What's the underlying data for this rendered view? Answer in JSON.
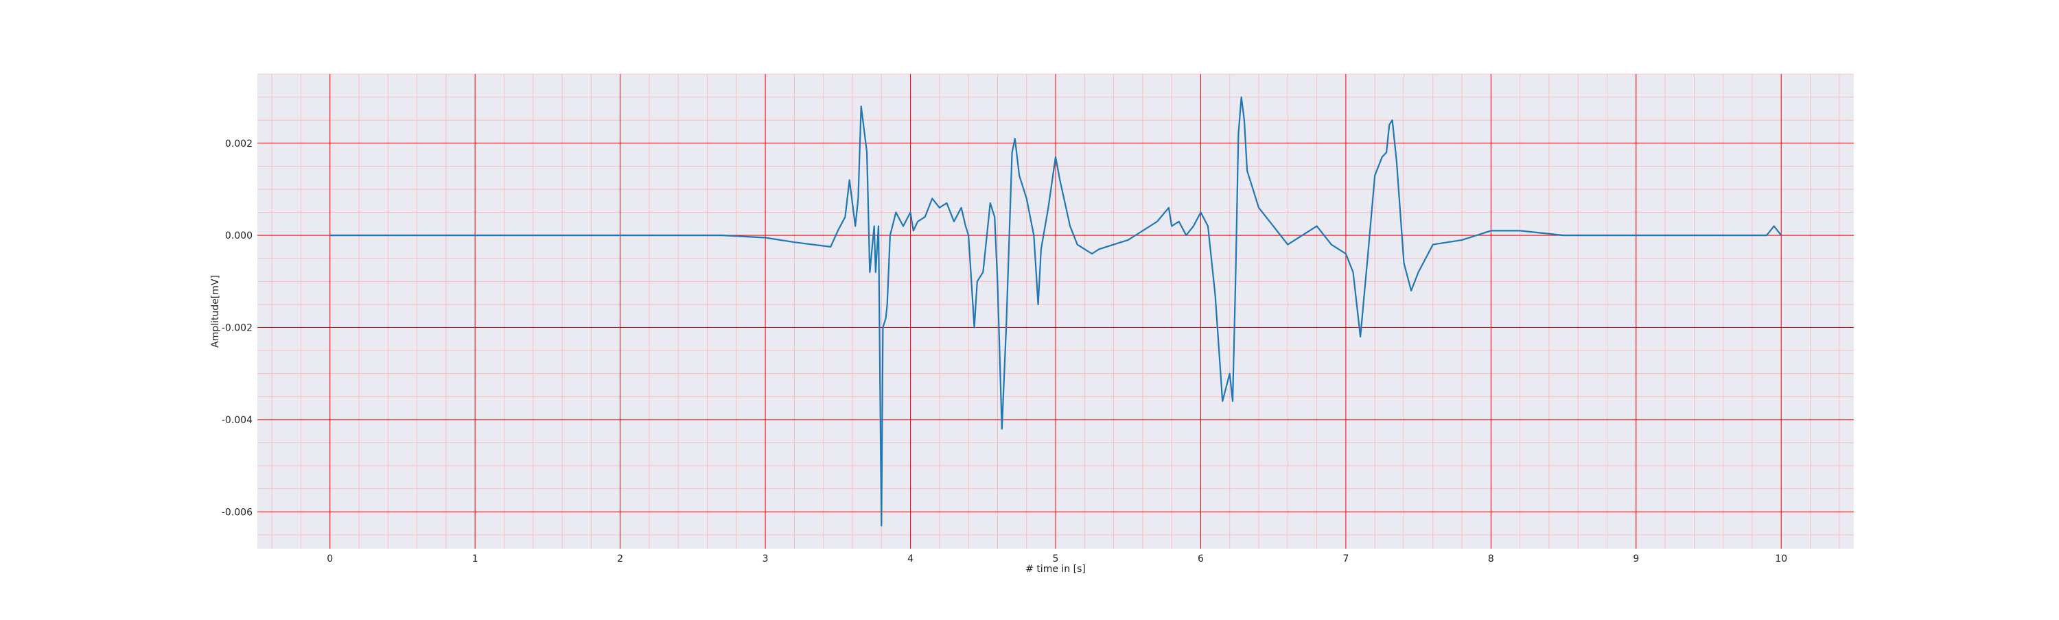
{
  "chart_data": {
    "type": "line",
    "title": "",
    "xlabel": "# time in [s]",
    "ylabel": "Amplitude[mV]",
    "xlim": [
      -0.5,
      10.5
    ],
    "ylim": [
      -0.0068,
      0.0035
    ],
    "xticks": [
      0,
      1,
      2,
      3,
      4,
      5,
      6,
      7,
      8,
      9,
      10
    ],
    "xtick_labels": [
      "0",
      "1",
      "2",
      "3",
      "4",
      "5",
      "6",
      "7",
      "8",
      "9",
      "10"
    ],
    "yticks": [
      -0.006,
      -0.004,
      -0.002,
      0.0,
      0.002
    ],
    "ytick_labels": [
      "-0.006",
      "-0.004",
      "-0.002",
      "0.000",
      "0.002"
    ],
    "grid": true,
    "grid_major_color": "#ff0000",
    "grid_minor_color": "#ffb3b3",
    "plot_background": "#eaeaf2",
    "series": [
      {
        "color": "#1f77b4",
        "x": [
          0,
          0.5,
          1,
          1.5,
          2,
          2.4,
          2.7,
          3,
          3.2,
          3.45,
          3.5,
          3.55,
          3.58,
          3.62,
          3.64,
          3.66,
          3.7,
          3.72,
          3.75,
          3.76,
          3.78,
          3.8,
          3.81,
          3.83,
          3.84,
          3.86,
          3.9,
          3.95,
          4.0,
          4.02,
          4.05,
          4.1,
          4.15,
          4.2,
          4.25,
          4.3,
          4.35,
          4.38,
          4.4,
          4.44,
          4.46,
          4.5,
          4.55,
          4.58,
          4.6,
          4.63,
          4.66,
          4.7,
          4.72,
          4.75,
          4.8,
          4.85,
          4.88,
          4.9,
          4.95,
          5.0,
          5.03,
          5.1,
          5.15,
          5.2,
          5.25,
          5.3,
          5.4,
          5.5,
          5.6,
          5.7,
          5.78,
          5.8,
          5.85,
          5.9,
          5.95,
          6.0,
          6.05,
          6.1,
          6.15,
          6.2,
          6.22,
          6.24,
          6.26,
          6.28,
          6.3,
          6.32,
          6.35,
          6.4,
          6.5,
          6.6,
          6.7,
          6.8,
          6.9,
          7.0,
          7.05,
          7.1,
          7.15,
          7.2,
          7.25,
          7.28,
          7.3,
          7.32,
          7.35,
          7.4,
          7.45,
          7.5,
          7.6,
          7.8,
          8.0,
          8.2,
          8.5,
          9.0,
          9.5,
          9.9,
          9.95,
          10.0
        ],
        "y": [
          0.0,
          0.0,
          0.0,
          0.0,
          0.0,
          0.0,
          0.0,
          -5e-05,
          -0.00015,
          -0.00025,
          0.0001,
          0.0004,
          0.0012,
          0.0002,
          0.0008,
          0.0028,
          0.0018,
          -0.0008,
          0.0002,
          -0.0008,
          0.0002,
          -0.0063,
          -0.002,
          -0.0018,
          -0.0015,
          0.0,
          0.0005,
          0.0002,
          0.0005,
          0.0001,
          0.0003,
          0.0004,
          0.0008,
          0.0006,
          0.0007,
          0.0003,
          0.0006,
          0.0002,
          0.0,
          -0.002,
          -0.001,
          -0.0008,
          0.0007,
          0.0004,
          -0.001,
          -0.0042,
          -0.002,
          0.0018,
          0.0021,
          0.0013,
          0.0008,
          0.0,
          -0.0015,
          -0.0003,
          0.0006,
          0.0017,
          0.0012,
          0.0002,
          -0.0002,
          -0.0003,
          -0.0004,
          -0.0003,
          -0.0002,
          -0.0001,
          0.0001,
          0.0003,
          0.0006,
          0.0002,
          0.0003,
          0.0,
          0.0002,
          0.0005,
          0.0002,
          -0.0013,
          -0.0036,
          -0.003,
          -0.0036,
          -0.001,
          0.0022,
          0.003,
          0.0025,
          0.0014,
          0.0011,
          0.0006,
          0.0002,
          -0.0002,
          0.0,
          0.0002,
          -0.0002,
          -0.0004,
          -0.0008,
          -0.0022,
          -0.0005,
          0.0013,
          0.0017,
          0.0018,
          0.0024,
          0.0025,
          0.0016,
          -0.0006,
          -0.0012,
          -0.0008,
          -0.0002,
          -0.0001,
          0.0001,
          0.0001,
          0.0,
          0.0,
          0.0,
          0.0,
          0.0002,
          0.0
        ]
      }
    ]
  }
}
